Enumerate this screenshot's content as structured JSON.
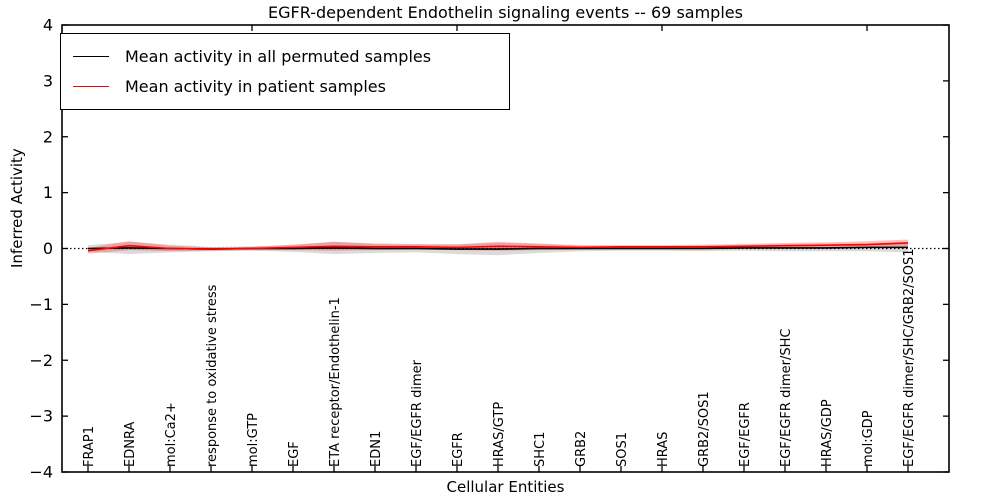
{
  "chart_data": {
    "type": "line",
    "title": "EGFR-dependent Endothelin signaling events -- 69 samples",
    "xlabel": "Cellular Entities",
    "ylabel": "Inferred Activity",
    "categories": [
      "FRAP1",
      "EDNRA",
      "mol:Ca2+",
      "response to oxidative stress",
      "mol:GTP",
      "EGF",
      "ETA receptor/Endothelin-1",
      "EDN1",
      "EGF/EGFR dimer",
      "EGFR",
      "HRAS/GTP",
      "SHC1",
      "GRB2",
      "SOS1",
      "HRAS",
      "GRB2/SOS1",
      "EGF/EGFR",
      "EGF/EGFR dimer/SHC",
      "HRAS/GDP",
      "mol:GDP",
      "EGF/EGFR dimer/SHC/GRB2/SOS1"
    ],
    "series": [
      {
        "name": "Mean activity in all permuted samples",
        "color": "#000000",
        "values": [
          0,
          0.01,
          0,
          -0.01,
          0,
          0,
          0.01,
          0,
          0,
          -0.01,
          -0.01,
          0,
          0,
          0,
          0,
          0,
          0.01,
          0.01,
          0.01,
          0.02,
          0.02
        ],
        "band": [
          0.06,
          0.11,
          0.07,
          0.04,
          0.04,
          0.06,
          0.11,
          0.08,
          0.07,
          0.09,
          0.11,
          0.08,
          0.05,
          0.04,
          0.04,
          0.05,
          0.05,
          0.06,
          0.06,
          0.07,
          0.09
        ],
        "band_color": "#000000",
        "band_opacity": 0.14
      },
      {
        "name": "Mean activity in patient samples",
        "color": "#ff0000",
        "values": [
          -0.04,
          0.05,
          0,
          -0.01,
          0,
          0.02,
          0.04,
          0.03,
          0.03,
          0.02,
          0.04,
          0.03,
          0.02,
          0.03,
          0.03,
          0.03,
          0.04,
          0.05,
          0.06,
          0.07,
          0.1
        ],
        "band": [
          0.05,
          0.08,
          0.05,
          0.03,
          0.03,
          0.05,
          0.08,
          0.06,
          0.05,
          0.05,
          0.08,
          0.06,
          0.04,
          0.03,
          0.03,
          0.04,
          0.04,
          0.05,
          0.05,
          0.06,
          0.06
        ],
        "band_color": "#ff0000",
        "band_opacity": 0.25
      }
    ],
    "ylim": [
      -4,
      4
    ],
    "yticks": [
      "4",
      "3",
      "2",
      "1",
      "0",
      "−1",
      "−2",
      "−3",
      "−4"
    ],
    "ytick_values": [
      4,
      3,
      2,
      1,
      0,
      -1,
      -2,
      -3,
      -4
    ],
    "zero_line": {
      "style": "dotted",
      "color": "#000000"
    },
    "legend_position": "upper left",
    "grid": false
  }
}
